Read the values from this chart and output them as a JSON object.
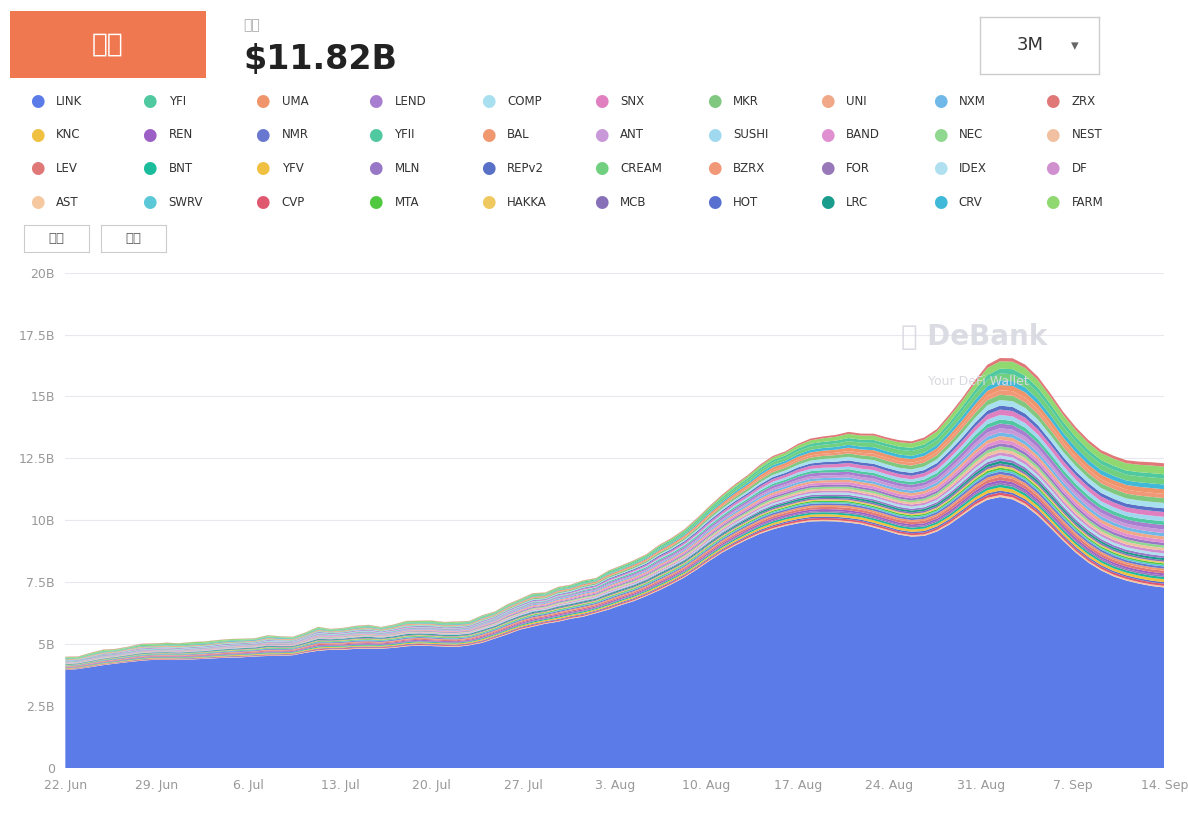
{
  "title_box_text": "市值",
  "title_box_color": "#F07850",
  "market_cap_label": "市值",
  "market_cap_value": "$11.82B",
  "button_3m": "3M",
  "background_color": "#ffffff",
  "chart_bg": "#ffffff",
  "yticks": [
    "0",
    "2.5B",
    "5B",
    "7.5B",
    "10B",
    "12.5B",
    "15B",
    "17.5B",
    "20B"
  ],
  "ytick_values": [
    0,
    2.5,
    5,
    7.5,
    10,
    12.5,
    15,
    17.5,
    20
  ],
  "xlabel_dates": [
    "22. Jun",
    "29. Jun",
    "6. Jul",
    "13. Jul",
    "20. Jul",
    "27. Jul",
    "3. Aug",
    "10. Aug",
    "17. Aug",
    "24. Aug",
    "31. Aug",
    "7. Sep",
    "14. Sep"
  ],
  "legend_rows": [
    [
      {
        "label": "LINK",
        "color": "#5B7BE8"
      },
      {
        "label": "YFI",
        "color": "#50C8A0"
      },
      {
        "label": "UMA",
        "color": "#F0956B"
      },
      {
        "label": "LEND",
        "color": "#A87ED0"
      },
      {
        "label": "COMP",
        "color": "#A8E0F0"
      },
      {
        "label": "SNX",
        "color": "#E080C0"
      },
      {
        "label": "MKR",
        "color": "#80C880"
      },
      {
        "label": "UNI",
        "color": "#F0A888"
      },
      {
        "label": "NXM",
        "color": "#70B8E8"
      },
      {
        "label": "ZRX",
        "color": "#E07878"
      }
    ],
    [
      {
        "label": "KNC",
        "color": "#F0C040"
      },
      {
        "label": "REN",
        "color": "#9B5FC6"
      },
      {
        "label": "NMR",
        "color": "#6878D0"
      },
      {
        "label": "YFII",
        "color": "#50C8A0"
      },
      {
        "label": "BAL",
        "color": "#F09870"
      },
      {
        "label": "ANT",
        "color": "#C898D8"
      },
      {
        "label": "SUSHI",
        "color": "#A0D8F0"
      },
      {
        "label": "BAND",
        "color": "#E090D0"
      },
      {
        "label": "NEC",
        "color": "#90D890"
      },
      {
        "label": "NEST",
        "color": "#F0C0A0"
      }
    ],
    [
      {
        "label": "LEV",
        "color": "#E07878"
      },
      {
        "label": "BNT",
        "color": "#1ABC9C"
      },
      {
        "label": "YFV",
        "color": "#F0C040"
      },
      {
        "label": "MLN",
        "color": "#9878C6"
      },
      {
        "label": "REPv2",
        "color": "#5870C6"
      },
      {
        "label": "CREAM",
        "color": "#70D080"
      },
      {
        "label": "BZRX",
        "color": "#F09878"
      },
      {
        "label": "FOR",
        "color": "#9878B8"
      },
      {
        "label": "IDEX",
        "color": "#B0E0F0"
      },
      {
        "label": "DF",
        "color": "#D090D0"
      }
    ],
    [
      {
        "label": "AST",
        "color": "#F5C8A0"
      },
      {
        "label": "SWRV",
        "color": "#5BC8D8"
      },
      {
        "label": "CVP",
        "color": "#E05870"
      },
      {
        "label": "MTA",
        "color": "#50C840"
      },
      {
        "label": "HAKKA",
        "color": "#F0C860"
      },
      {
        "label": "MCB",
        "color": "#8870B8"
      },
      {
        "label": "HOT",
        "color": "#5870D0"
      },
      {
        "label": "LRC",
        "color": "#1A9C8C"
      },
      {
        "label": "CRV",
        "color": "#40B8D8"
      },
      {
        "label": "FARM",
        "color": "#90D870"
      }
    ]
  ],
  "stack_colors": [
    "#F5C8A0",
    "#5BC8D8",
    "#E05870",
    "#50C840",
    "#F0C860",
    "#8870B8",
    "#5870D0",
    "#1A9C8C",
    "#40B8D8",
    "#90D870",
    "#E07878",
    "#1ABC9C",
    "#F0C040",
    "#9878C6",
    "#5870C6",
    "#70D080",
    "#F09878",
    "#9878B8",
    "#B0E0F0",
    "#D090D0",
    "#F0C040",
    "#9B5FC6",
    "#6878D0",
    "#50C8A0",
    "#F09870",
    "#C898D8",
    "#A0D8F0",
    "#E090D0",
    "#90D890",
    "#F0C0A0",
    "#F0956B",
    "#A87ED0",
    "#A8E0F0",
    "#E080C0",
    "#80C880",
    "#F0A888",
    "#70B8E8",
    "#E07878",
    "#50C8A0",
    "#5B7BE8"
  ],
  "debank_logo_color": "#d8d8e0",
  "grid_color": "#e8e8ee",
  "axis_color": "#cccccc",
  "tick_color": "#999999"
}
